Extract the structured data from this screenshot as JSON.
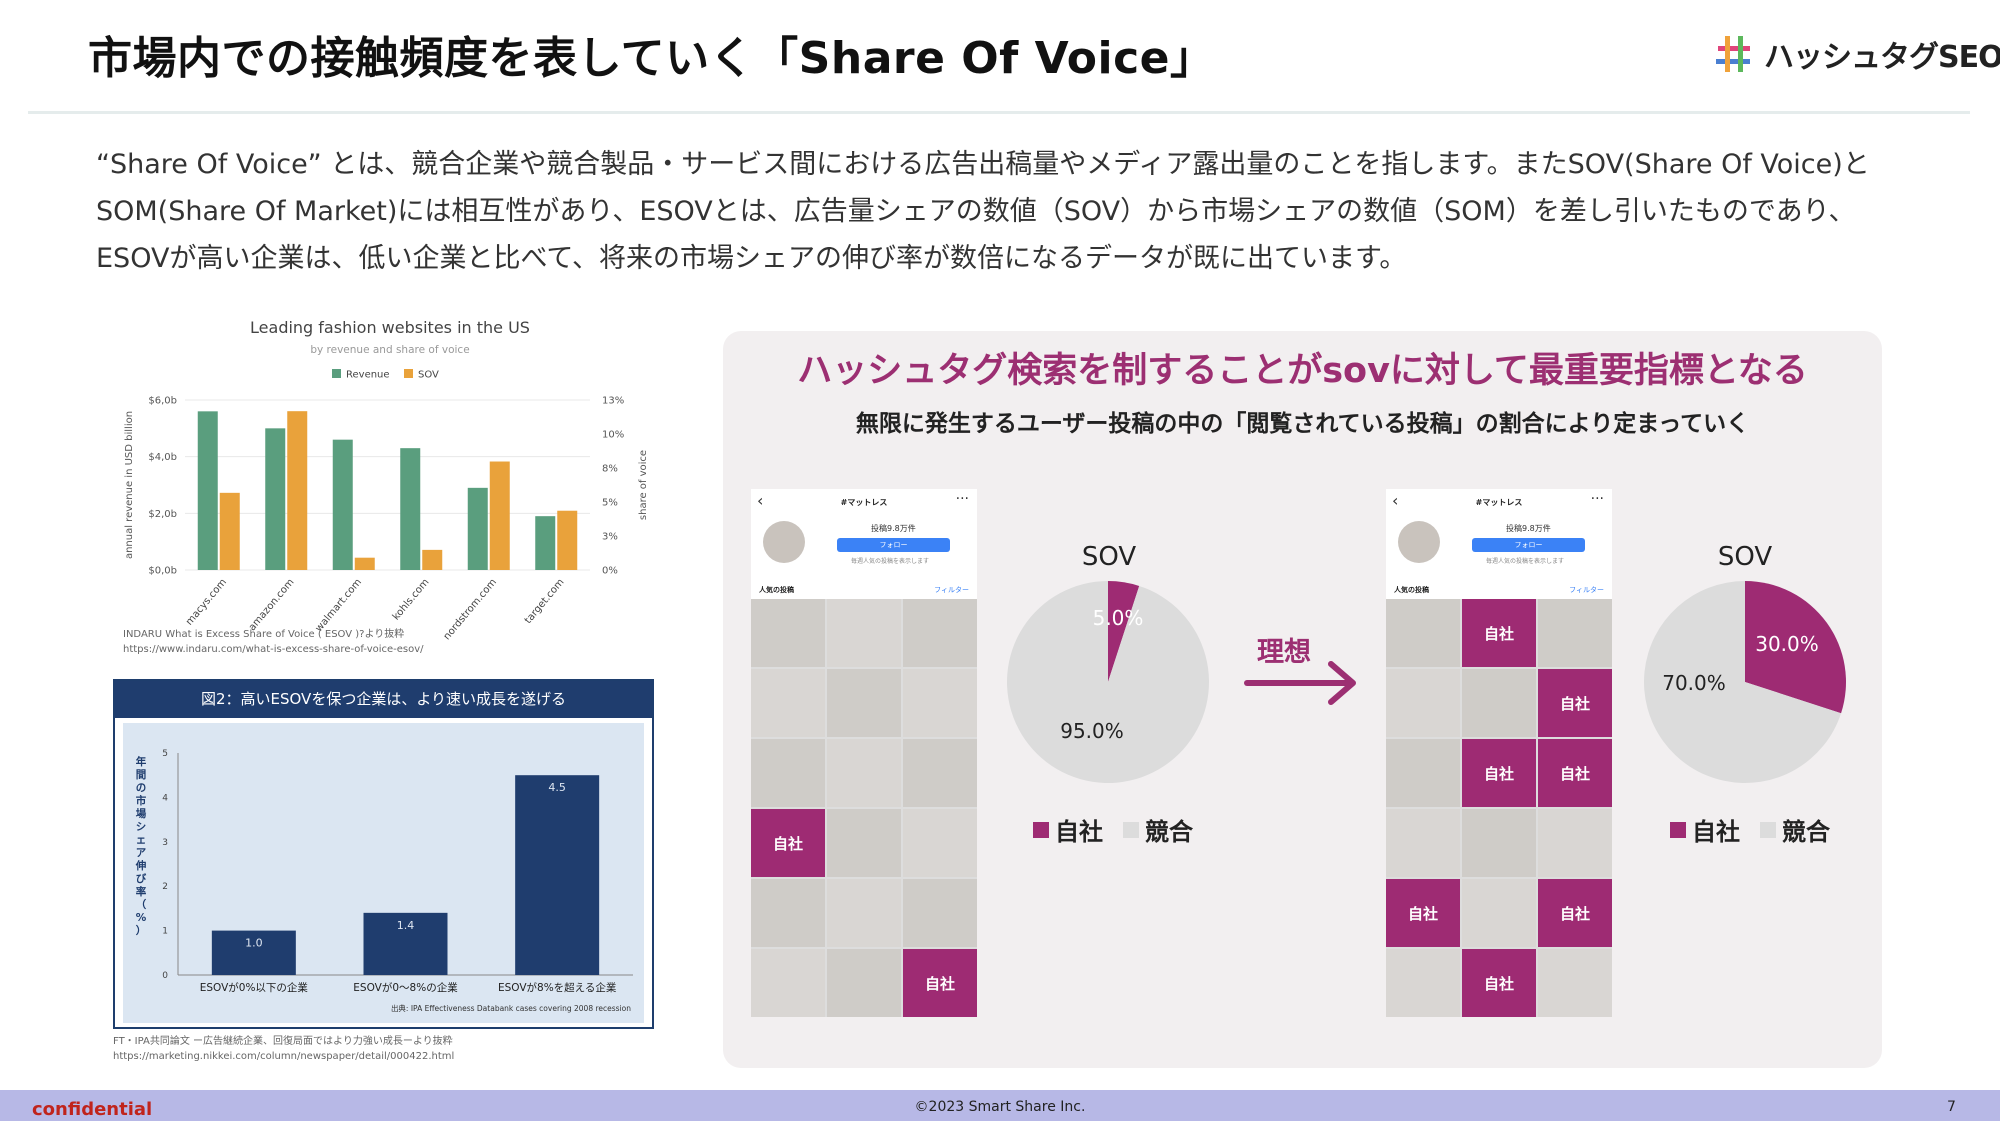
{
  "slide": {
    "title": "市場内での接触頻度を表していく「Share Of Voice」",
    "logo_text": "ハッシュタグSEO",
    "intro_lines": [
      "“Share Of Voice” とは、競合企業や競合製品・サービス間における広告出稿量やメディア露出量のことを指します。またSOV(Share Of Voice)と",
      "SOM(Share Of Market)には相互性があり、ESOVとは、広告量シェアの数値（SOV）から市場シェアの数値（SOM）を差し引いたものであり、",
      "ESOVが高い企業は、低い企業と比べて、将来の市場シェアの伸び率が数倍になるデータが既に出ています。"
    ],
    "footer": {
      "confidential": "confidential",
      "copyright": "©2023 Smart Share Inc.",
      "page": "7"
    }
  },
  "chart_data": [
    {
      "type": "bar",
      "title": "Leading fashion websites in the US",
      "subtitle": "by revenue and share of voice",
      "categories": [
        "macys.com",
        "amazon.com",
        "walmart.com",
        "kohls.com",
        "nordstrom.com",
        "target.com"
      ],
      "series": [
        {
          "name": "Revenue",
          "axis": "left",
          "color": "#5a9e7e",
          "values": [
            5.6,
            5.0,
            4.6,
            4.3,
            2.9,
            1.9
          ]
        },
        {
          "name": "SOV",
          "axis": "right",
          "color": "#e9a23b",
          "values": [
            6.9,
            14.2,
            1.1,
            1.8,
            9.7,
            5.3
          ]
        }
      ],
      "ylabel": "annual revenue in USD billion",
      "ylabel_right": "share of voice",
      "yticks": [
        "$0,0b",
        "$2,0b",
        "$4,0b",
        "$6,0b"
      ],
      "yticks_right": [
        "0%",
        "3%",
        "5%",
        "8%",
        "10%",
        "13%"
      ],
      "ylim": [
        0,
        6
      ],
      "ylim_right": [
        0,
        15.2
      ],
      "legend_position": "top",
      "source_lines": [
        "INDARU What is Excess Share of Voice ( ESOV )?より抜粋",
        "https://www.indaru.com/what-is-excess-share-of-voice-esov/"
      ]
    },
    {
      "type": "bar",
      "title": "図2：高いESOVを保つ企業は、より速い成長を遂げる",
      "categories": [
        "ESOVが0%以下の企業",
        "ESOVが0〜8%の企業",
        "ESOVが8%を超える企業"
      ],
      "values": [
        1.0,
        1.4,
        4.5
      ],
      "value_labels": [
        "1.0",
        "1.4",
        "4.5"
      ],
      "ylabel": "年間の市場シェア伸び率（%）",
      "yticks": [
        "0",
        "1",
        "2",
        "3",
        "4",
        "5"
      ],
      "ylim": [
        0,
        5
      ],
      "color": "#1f3d6e",
      "source_inner": "出典: IPA Effectiveness Databank cases covering 2008 recession",
      "source_lines": [
        "FT・IPA共同論文 ー広告継続企業、回復局面ではより力強い成長ーより抜粋",
        "https://marketing.nikkei.com/column/newspaper/detail/000422.html"
      ]
    },
    {
      "type": "pie",
      "title": "SOV",
      "categories": [
        "自社",
        "競合"
      ],
      "values": [
        5.0,
        95.0
      ],
      "value_labels": [
        "5.0%",
        "95.0%"
      ],
      "colors": [
        "#9e2b73",
        "#dcdcdc"
      ]
    },
    {
      "type": "pie",
      "title": "SOV",
      "categories": [
        "自社",
        "競合"
      ],
      "values": [
        30.0,
        70.0
      ],
      "value_labels": [
        "30.0%",
        "70.0%"
      ],
      "colors": [
        "#9e2b73",
        "#dcdcdc"
      ]
    }
  ],
  "panel": {
    "title": "ハッシュタグ検索を制することがsovに対して最重要指標となる",
    "subtitle": "無限に発生するユーザー投稿の中の「閲覧されている投稿」の割合により定まっていく",
    "arrow_label": "理想",
    "phone": {
      "back": "‹",
      "hashtag": "#マットレス",
      "more": "···",
      "count": "投稿9.8万件",
      "follow": "フォロー",
      "note": "毎週人気の投稿を表示します",
      "popular": "人気の投稿",
      "filter": "フィルター"
    },
    "phone_left_cells": [
      "",
      "",
      "",
      "",
      "",
      "",
      "",
      "",
      "",
      "自社",
      "",
      "",
      "",
      "",
      "",
      "",
      "",
      "自社"
    ],
    "phone_right_cells": [
      "",
      "自社",
      "",
      "",
      "",
      "自社",
      "",
      "自社",
      "自社",
      "",
      "",
      "",
      "自社",
      "",
      "自社",
      "",
      "自社",
      ""
    ],
    "legend": {
      "own": "自社",
      "competitor": "競合"
    }
  }
}
